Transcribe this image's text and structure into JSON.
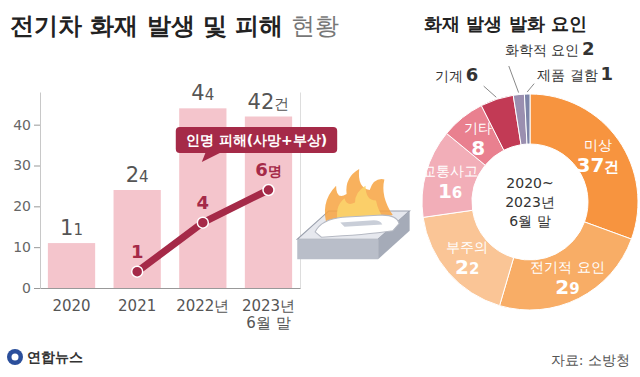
{
  "title": "전기차 화재 발생 및 피해 현황",
  "source": "자료: 소방청",
  "credit": "연합뉴스",
  "chart_data": [
    {
      "type": "bar",
      "categories": [
        "2020",
        "2021",
        "2022년",
        "2023년\n6월 말"
      ],
      "ylim": [
        0,
        48
      ],
      "yticks": [
        0,
        10,
        20,
        30,
        40
      ],
      "y2lim": [
        0,
        12
      ],
      "y2ticks": [],
      "grid": false,
      "data_labels": true,
      "series": [
        {
          "type": "bar",
          "color": "#f4c5cc",
          "values": [
            11,
            24,
            44,
            42
          ],
          "value_labels": [
            "11",
            "24",
            "44",
            "42건"
          ]
        },
        {
          "type": "line",
          "name": "인명 피해(사망+부상)",
          "color": "#a52a48",
          "axis": "y2",
          "marker": "circle",
          "line_style": "solid",
          "values": [
            null,
            1,
            4,
            6
          ],
          "value_labels": [
            null,
            "1",
            "4",
            "6명"
          ]
        }
      ]
    },
    {
      "type": "pie",
      "title": "화재 발생 발화 요인",
      "subtitle": "2020~\n2023년\n6월 말",
      "categories": [
        "미상",
        "전기적 요인",
        "부주의",
        "교통사고",
        "기타",
        "기계",
        "화학적 요인",
        "제품 결함"
      ],
      "values": [
        37,
        29,
        22,
        16,
        8,
        6,
        2,
        1
      ],
      "value_labels": [
        "37건",
        "29",
        "22",
        "16",
        "8",
        "6",
        "2",
        "1"
      ],
      "colors": [
        "#f7943f",
        "#f8ad66",
        "#fac596",
        "#f2aeb8",
        "#e9808f",
        "#c23a55",
        "#9b8fb0",
        "#7d84a8"
      ],
      "data_labels": true
    }
  ]
}
